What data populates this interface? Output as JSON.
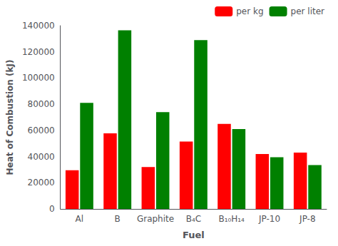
{
  "chart_data": {
    "type": "bar",
    "xlabel": "Fuel",
    "ylabel": "Heat of Combustion (kJ)",
    "categories": [
      "Al",
      "B",
      "Graphite",
      "B₄C",
      "B₁₀H₁₄",
      "JP-10",
      "JP-8"
    ],
    "series": [
      {
        "name": "per kg",
        "color": "#ff0000",
        "values": [
          29500,
          57800,
          32000,
          51500,
          65000,
          42000,
          43000
        ]
      },
      {
        "name": "per liter",
        "color": "#008000",
        "values": [
          81000,
          136500,
          74000,
          129000,
          61000,
          39500,
          33500
        ]
      }
    ],
    "ylim": [
      0,
      140000
    ],
    "yticks": [
      0,
      20000,
      40000,
      60000,
      80000,
      100000,
      120000,
      140000
    ],
    "grid": false,
    "legend": "upper right"
  }
}
